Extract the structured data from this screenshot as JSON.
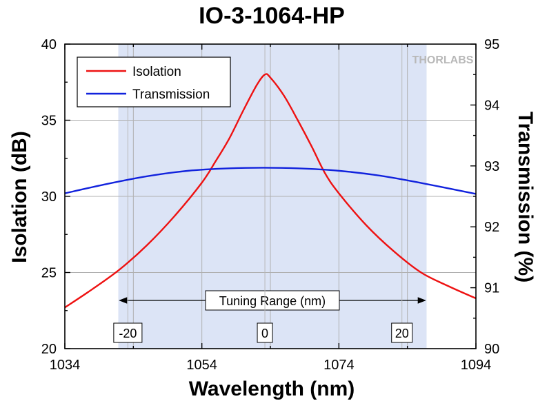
{
  "chart_data": {
    "type": "line",
    "title": "IO-3-1064-HP",
    "xlabel": "Wavelength (nm)",
    "ylabel": "Isolation (dB)",
    "y2label": "Transmission (%)",
    "xlim": [
      1034,
      1094
    ],
    "ylim": [
      20,
      40
    ],
    "y2lim": [
      90,
      95
    ],
    "xticks": [
      "1034",
      "1054",
      "1074",
      "1094"
    ],
    "yticks": [
      "20",
      "25",
      "30",
      "35",
      "40"
    ],
    "y2ticks": [
      "90",
      "91",
      "92",
      "93",
      "94",
      "95"
    ],
    "grid": true,
    "legend_position": "top-left",
    "tuning_range": {
      "label": "Tuning Range (nm)",
      "x_start": 1041.8,
      "x_end": 1086.8,
      "markers": [
        {
          "x": 1043.2,
          "label": "-20"
        },
        {
          "x": 1063.2,
          "label": "0"
        },
        {
          "x": 1083.2,
          "label": "20"
        }
      ]
    },
    "series": [
      {
        "name": "Isolation",
        "axis": "left",
        "color": "#ee1111",
        "x": [
          1034,
          1038,
          1042,
          1046,
          1050,
          1054,
          1056,
          1058,
          1060,
          1062,
          1063.2,
          1064,
          1066,
          1068,
          1070,
          1072,
          1074,
          1078,
          1082,
          1086,
          1090,
          1094
        ],
        "y": [
          22.7,
          23.9,
          25.2,
          26.8,
          28.7,
          30.9,
          32.3,
          33.8,
          35.6,
          37.3,
          38.0,
          37.8,
          36.6,
          35.0,
          33.3,
          31.5,
          30.2,
          28.1,
          26.4,
          25.0,
          24.1,
          23.3
        ]
      },
      {
        "name": "Transmission",
        "axis": "right",
        "color": "#1122dd",
        "x": [
          1034,
          1040,
          1046,
          1052,
          1058,
          1063,
          1068,
          1074,
          1080,
          1086,
          1094
        ],
        "y": [
          92.55,
          92.7,
          92.83,
          92.92,
          92.96,
          92.97,
          92.96,
          92.92,
          92.84,
          92.72,
          92.54
        ]
      }
    ]
  },
  "watermark": "THORLABS"
}
